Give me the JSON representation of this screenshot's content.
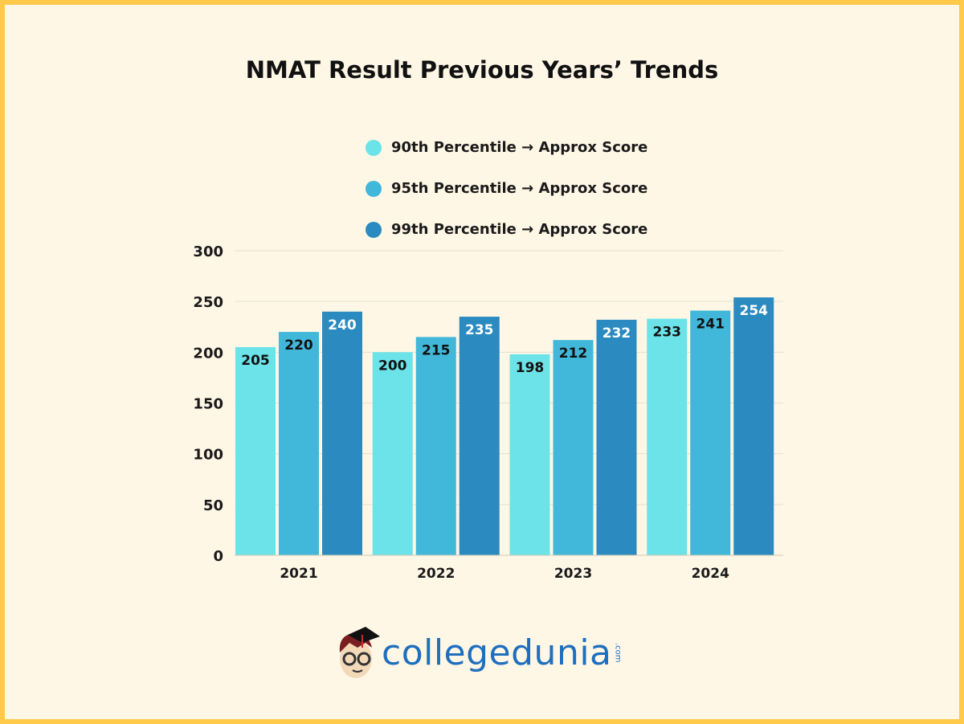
{
  "chart_data": {
    "type": "bar",
    "title": "NMAT Result Previous Years’ Trends",
    "categories": [
      "2021",
      "2022",
      "2023",
      "2024"
    ],
    "series": [
      {
        "name": "90th Percentile → Approx Score",
        "color": "#6BE3E8",
        "label_color": "#111111",
        "values": [
          205,
          200,
          198,
          233
        ]
      },
      {
        "name": "95th Percentile → Approx Score",
        "color": "#41B8D9",
        "label_color": "#111111",
        "values": [
          220,
          215,
          212,
          241
        ]
      },
      {
        "name": "99th Percentile → Approx Score",
        "color": "#2B8ABF",
        "label_color": "#ffffff",
        "values": [
          240,
          235,
          232,
          254
        ]
      }
    ],
    "ylim": [
      0,
      300
    ],
    "yticks": [
      0,
      50,
      100,
      150,
      200,
      250,
      300
    ],
    "grid": true,
    "legend_placement": "top-center",
    "data_labels": true
  },
  "brand": {
    "name": "collegedunia",
    "suffix": ".com"
  },
  "colors": {
    "border": "#FFC94A",
    "background": "#FFF7E6"
  }
}
